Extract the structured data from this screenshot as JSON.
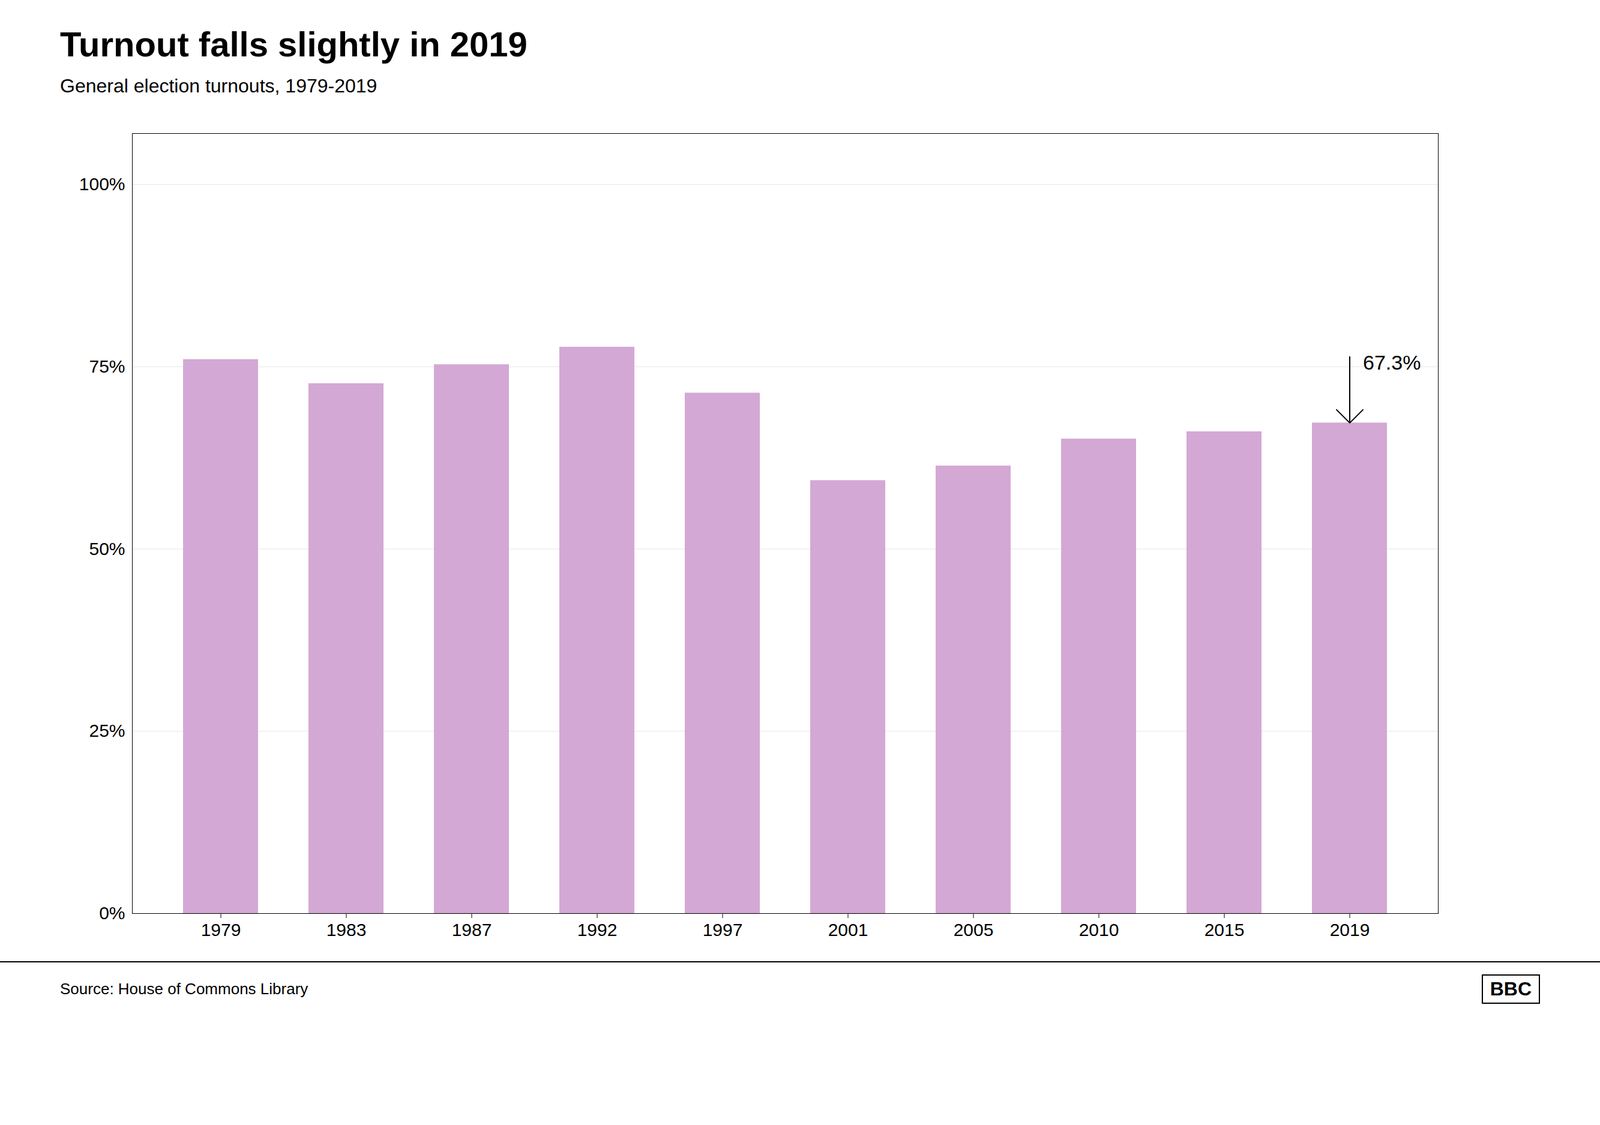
{
  "chart_data": {
    "type": "bar",
    "title": "Turnout falls slightly in 2019",
    "subtitle": "General election turnouts, 1979-2019",
    "source": "Source: House of Commons Library",
    "logo": "BBC",
    "categories": [
      "1979",
      "1983",
      "1987",
      "1992",
      "1997",
      "2001",
      "2005",
      "2010",
      "2015",
      "2019"
    ],
    "values": [
      76.0,
      72.7,
      75.3,
      77.7,
      71.4,
      59.4,
      61.4,
      65.1,
      66.1,
      67.3
    ],
    "color": "#D4A8D4",
    "ylim": [
      0,
      107
    ],
    "yticks": [
      {
        "value": 0,
        "label": "0%"
      },
      {
        "value": 25,
        "label": "25%"
      },
      {
        "value": 50,
        "label": "50%"
      },
      {
        "value": 75,
        "label": "75%"
      },
      {
        "value": 100,
        "label": "100%"
      }
    ],
    "grid": true,
    "annotations": [
      {
        "text": "67.3%",
        "x": "2019",
        "y": 67.3
      }
    ]
  }
}
